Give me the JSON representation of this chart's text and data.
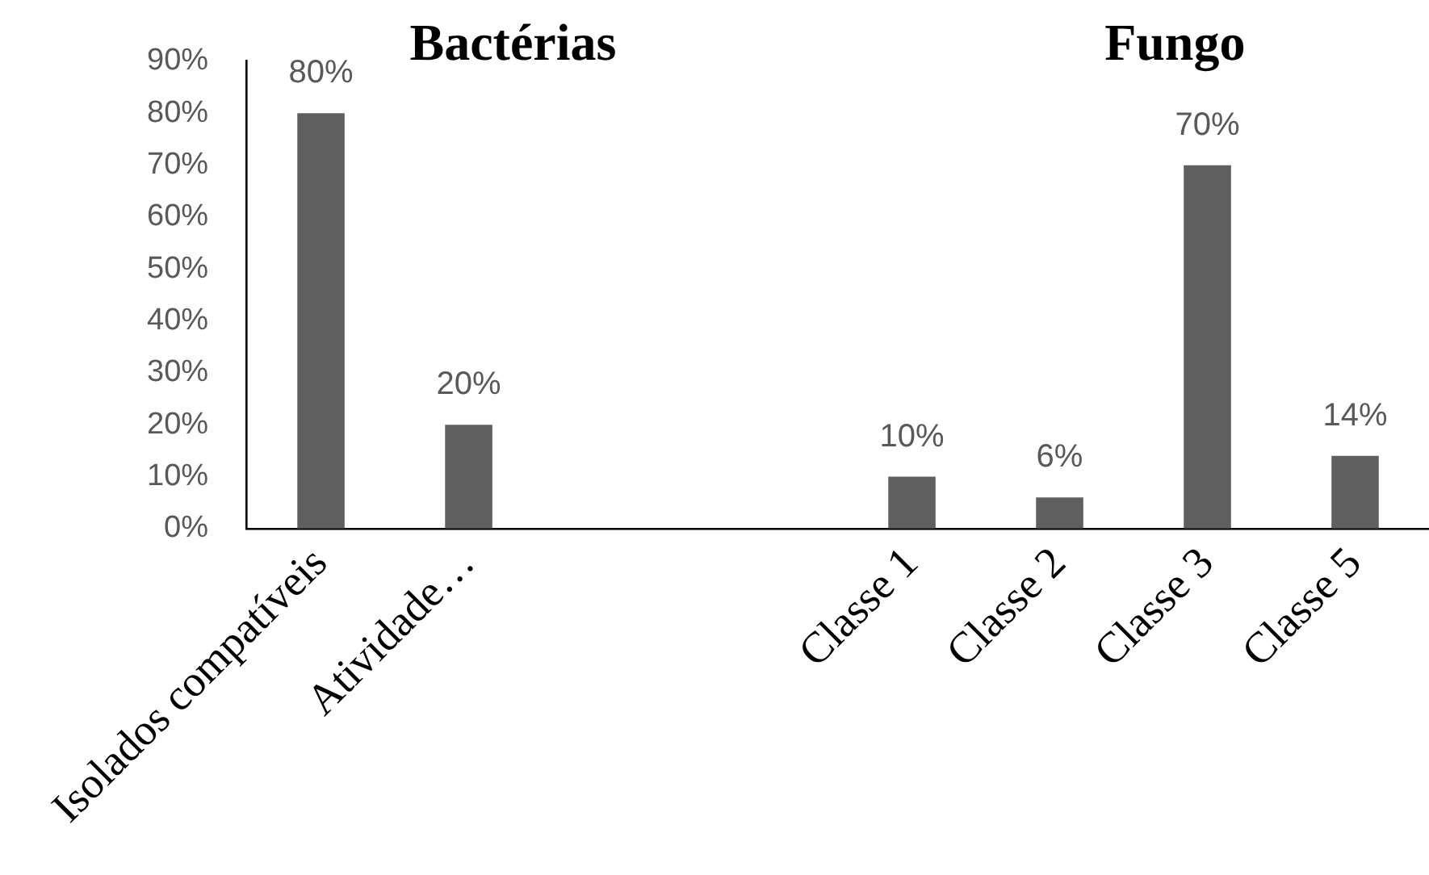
{
  "chart_data": {
    "type": "bar",
    "categories": [
      "Isolados compatíveis",
      "Atividade…",
      null,
      null,
      "Classe 1",
      "Classe 2",
      "Classe 3",
      "Classe 5"
    ],
    "values": [
      80,
      20,
      null,
      null,
      10,
      6,
      70,
      14
    ],
    "value_labels": [
      "80%",
      "20%",
      null,
      null,
      "10%",
      "6%",
      "70%",
      "14%"
    ],
    "color": "#5f5f5f",
    "ylim": [
      0,
      90
    ],
    "yticks": [
      {
        "value": 0,
        "label": "0%"
      },
      {
        "value": 10,
        "label": "10%"
      },
      {
        "value": 20,
        "label": "20%"
      },
      {
        "value": 30,
        "label": "30%"
      },
      {
        "value": 40,
        "label": "40%"
      },
      {
        "value": 50,
        "label": "50%"
      },
      {
        "value": 60,
        "label": "60%"
      },
      {
        "value": 70,
        "label": "70%"
      },
      {
        "value": 80,
        "label": "80%"
      },
      {
        "value": 90,
        "label": "90%"
      }
    ],
    "annotations": [
      "Bactérias",
      "Fungo"
    ],
    "grid": false,
    "legend": false
  }
}
